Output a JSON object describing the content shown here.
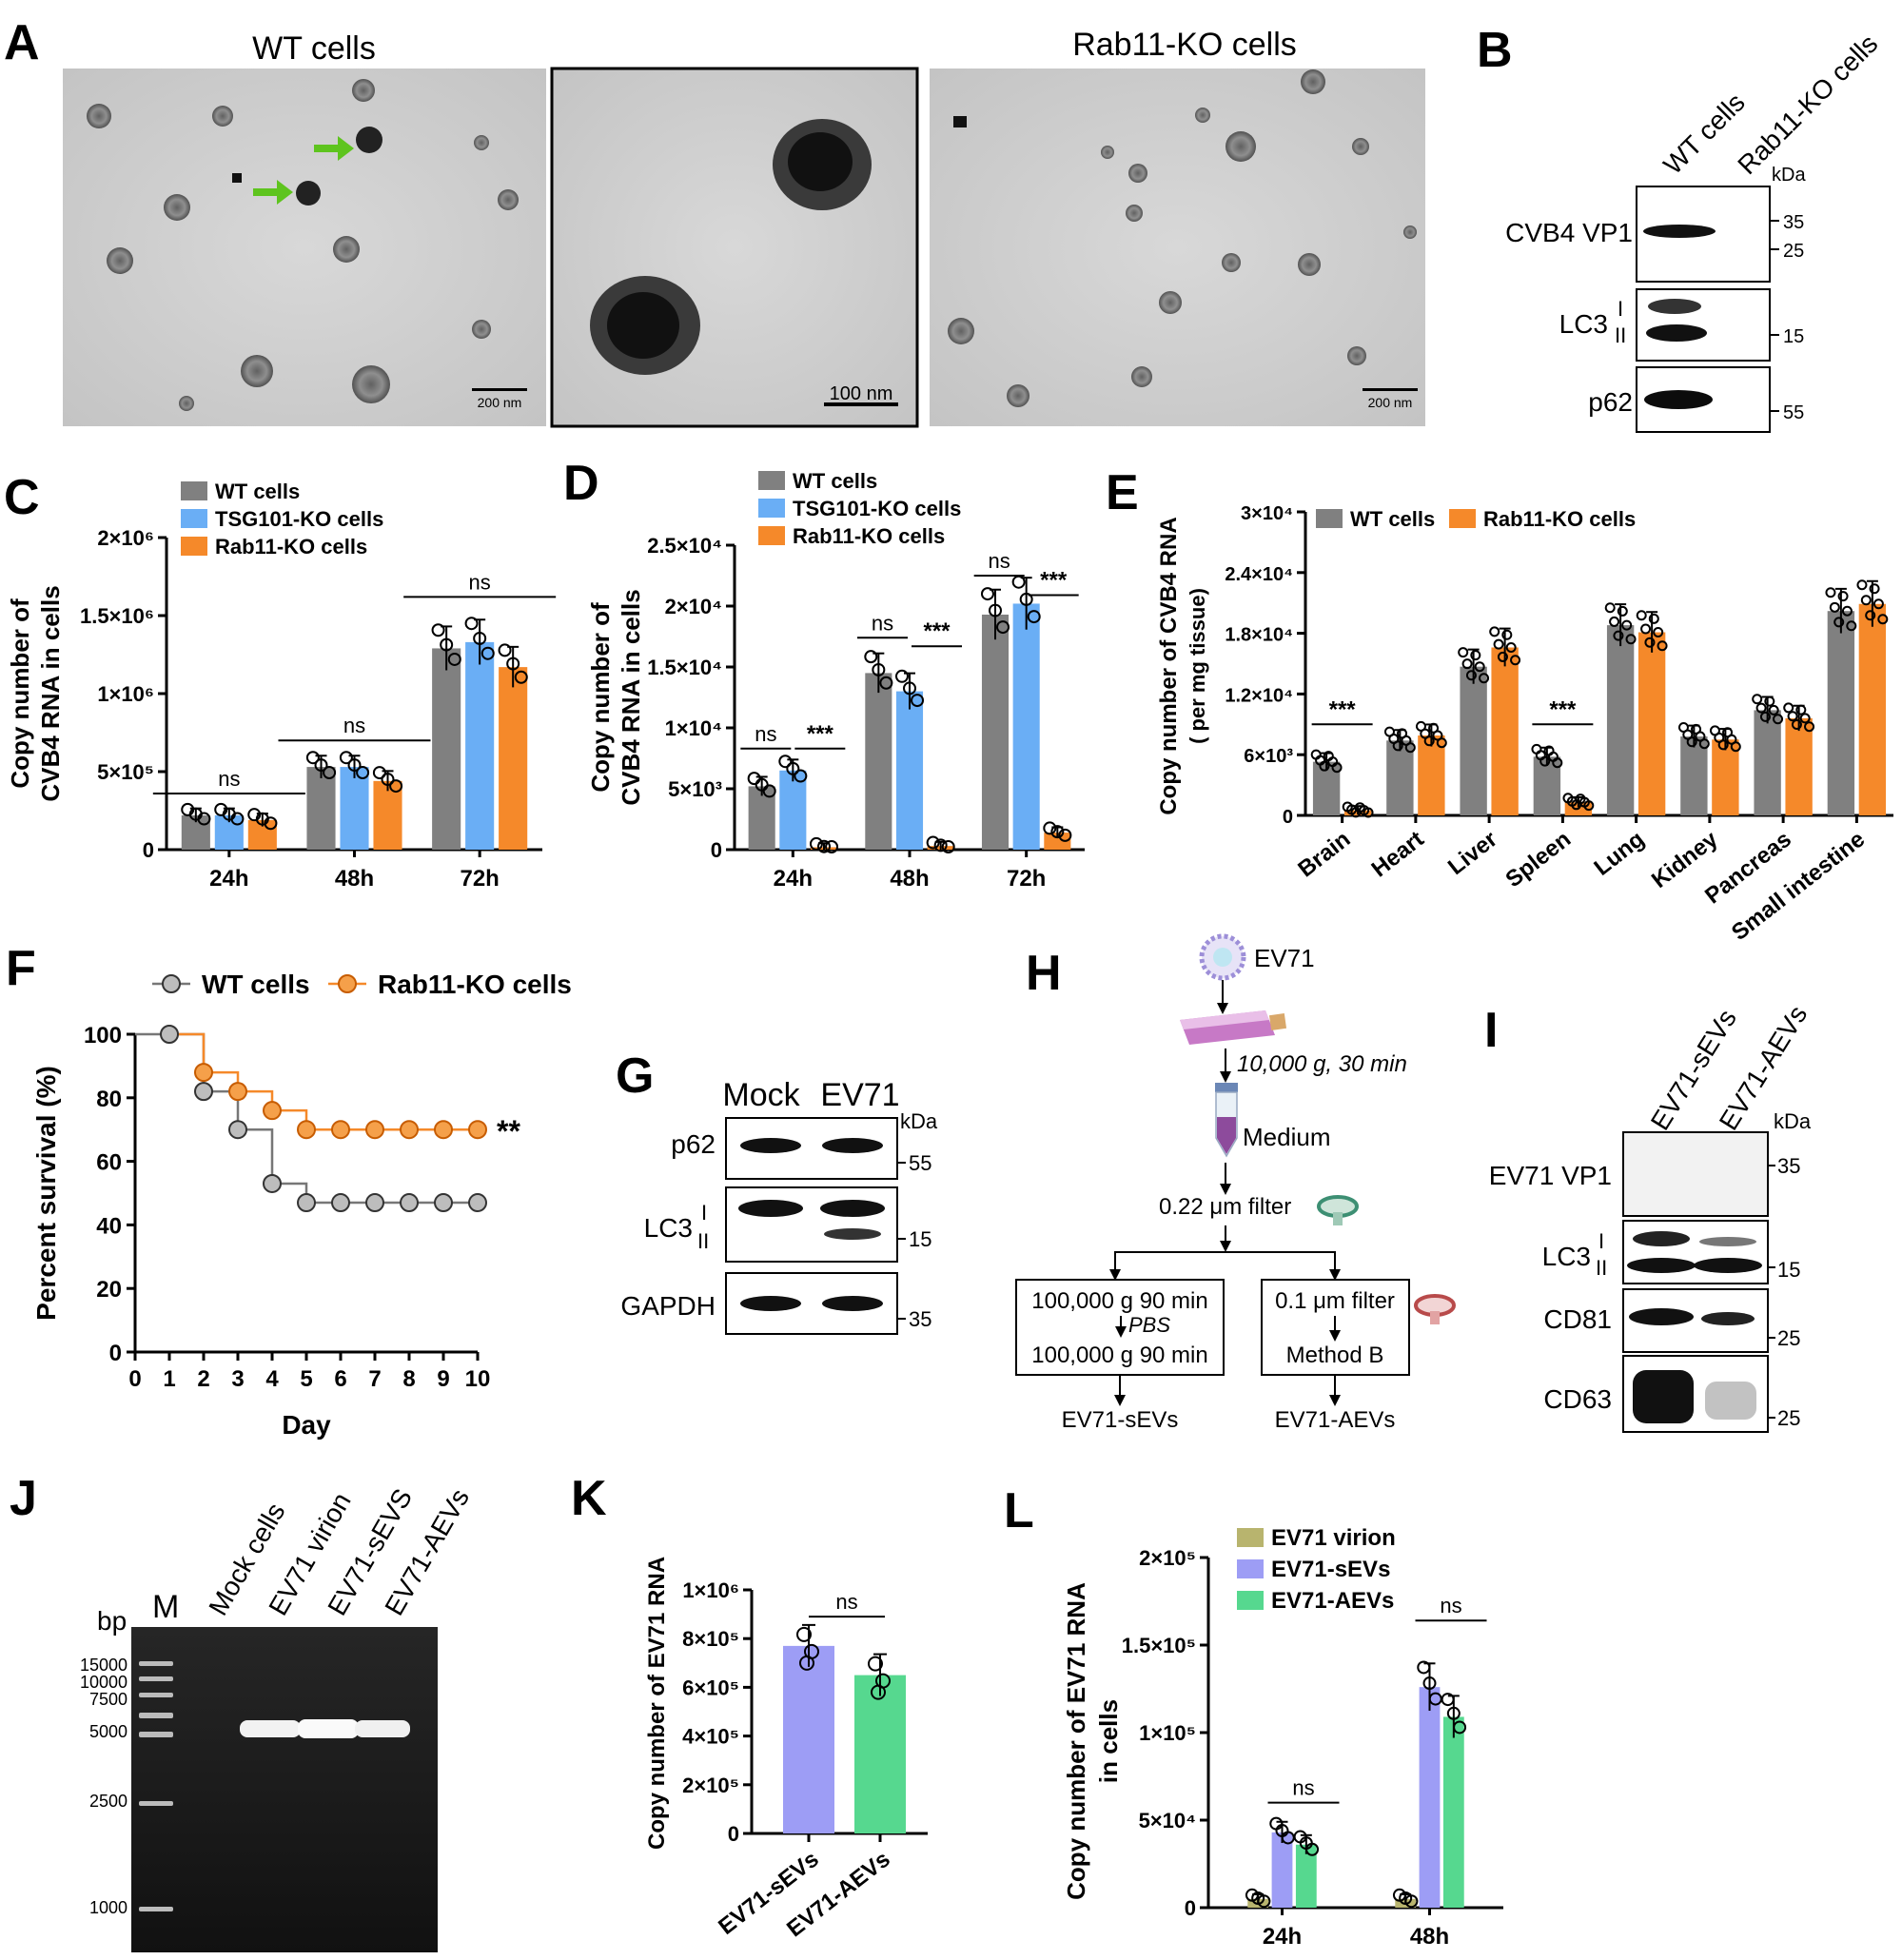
{
  "panel_letters": [
    "A",
    "B",
    "C",
    "D",
    "E",
    "F",
    "G",
    "H",
    "I",
    "J",
    "K",
    "L"
  ],
  "panelA": {
    "titles": [
      "WT cells",
      "Rab11-KO cells"
    ],
    "scalebars": [
      "200 nm",
      "100 nm",
      "200 nm"
    ]
  },
  "panelB": {
    "lanes": [
      "WT cells",
      "Rab11-KO cells"
    ],
    "kda_label": "kDa",
    "rows": [
      {
        "label": "CVB4 VP1",
        "markers": [
          "35",
          "25"
        ]
      },
      {
        "label": "LC3",
        "sub": [
          "I",
          "II"
        ],
        "markers": [
          "15"
        ]
      },
      {
        "label": "p62",
        "markers": [
          "55"
        ]
      }
    ]
  },
  "panelG": {
    "lanes": [
      "Mock",
      "EV71"
    ],
    "kda_label": "kDa",
    "rows": [
      {
        "label": "p62",
        "markers": [
          "55"
        ]
      },
      {
        "label": "LC3",
        "sub": [
          "I",
          "II"
        ],
        "markers": [
          "15"
        ]
      },
      {
        "label": "GAPDH",
        "markers": [
          "35"
        ]
      }
    ]
  },
  "panelH": {
    "virus": "EV71",
    "spin1": "10,000 g, 30 min",
    "medium": "Medium",
    "filter1": "0.22 μm filter",
    "left_box": [
      "100,000 g  90 min",
      "PBS",
      "100,000 g  90 min"
    ],
    "right_box": [
      "0.1 μm filter",
      "Method B"
    ],
    "outputs": [
      "EV71-sEVs",
      "EV71-AEVs"
    ]
  },
  "panelI": {
    "lanes": [
      "EV71-sEVs",
      "EV71-AEVs"
    ],
    "kda_label": "kDa",
    "rows": [
      {
        "label": "EV71 VP1",
        "markers": [
          "35"
        ]
      },
      {
        "label": "LC3",
        "sub": [
          "I",
          "II"
        ],
        "markers": [
          "15"
        ]
      },
      {
        "label": "CD81",
        "markers": [
          "25"
        ]
      },
      {
        "label": "CD63",
        "markers": [
          "25"
        ]
      }
    ]
  },
  "panelJ": {
    "lanes": [
      "M",
      "Mock cells",
      "EV71 virion",
      "EV71-sEVS",
      "EV71-AEVs"
    ],
    "bp_label": "bp",
    "ladder": [
      "15000",
      "10000",
      "7500",
      "5000",
      "2500",
      "1000"
    ]
  },
  "chart_data": [
    {
      "panel": "C",
      "type": "bar",
      "ylabel": "Copy number of CVB4 RNA in cells",
      "yticks": [
        "0",
        "5×10⁵",
        "1×10⁶",
        "1.5×10⁶",
        "2×10⁶"
      ],
      "ylim": [
        0,
        2000000
      ],
      "categories": [
        "24h",
        "48h",
        "72h"
      ],
      "series": [
        {
          "name": "WT cells",
          "color": "#808080",
          "values": [
            220000,
            530000,
            1290000
          ]
        },
        {
          "name": "TSG101-KO cells",
          "color": "#6aaef5",
          "values": [
            220000,
            530000,
            1330000
          ]
        },
        {
          "name": "Rab11-KO cells",
          "color": "#f5892a",
          "values": [
            190000,
            440000,
            1170000
          ]
        }
      ],
      "annotations": [
        "ns",
        "ns",
        "ns"
      ]
    },
    {
      "panel": "D",
      "type": "bar",
      "ylabel": "Copy number of CVB4 RNA in cells",
      "yticks": [
        "0",
        "5×10³",
        "1×10⁴",
        "1.5×10⁴",
        "2×10⁴",
        "2.5×10⁴"
      ],
      "ylim": [
        0,
        25000
      ],
      "categories": [
        "24h",
        "48h",
        "72h"
      ],
      "series": [
        {
          "name": "WT cells",
          "color": "#808080",
          "values": [
            5200,
            14500,
            19300
          ]
        },
        {
          "name": "TSG101-KO cells",
          "color": "#6aaef5",
          "values": [
            6500,
            13000,
            20200
          ]
        },
        {
          "name": "Rab11-KO cells",
          "color": "#f5892a",
          "values": [
            200,
            300,
            1400
          ]
        }
      ],
      "annotations": [
        "ns",
        "***",
        "ns",
        "***",
        "ns",
        "***"
      ]
    },
    {
      "panel": "E",
      "type": "bar",
      "ylabel": "Copy number of CVB4 RNA",
      "ylabel2": "( per mg tissue)",
      "yticks": [
        "0",
        "6×10³",
        "1.2×10⁴",
        "1.8×10⁴",
        "2.4×10⁴",
        "3×10⁴"
      ],
      "ylim": [
        0,
        30000
      ],
      "categories": [
        "Brain",
        "Heart",
        "Liver",
        "Spleen",
        "Lung",
        "Kidney",
        "Pancreas",
        "Small intestine"
      ],
      "series": [
        {
          "name": "WT cells",
          "color": "#808080",
          "values": [
            5300,
            7400,
            14700,
            5800,
            18800,
            7800,
            10400,
            20200
          ]
        },
        {
          "name": "Rab11-KO cells",
          "color": "#f5892a",
          "values": [
            500,
            7900,
            16600,
            1300,
            18100,
            7500,
            9600,
            20900
          ]
        }
      ],
      "annotations": [
        "***",
        "***"
      ]
    },
    {
      "panel": "F",
      "type": "line",
      "xlabel": "Day",
      "ylabel": "Percent survival (%)",
      "xticks": [
        "0",
        "1",
        "2",
        "3",
        "4",
        "5",
        "6",
        "7",
        "8",
        "9",
        "10"
      ],
      "yticks": [
        "0",
        "20",
        "40",
        "60",
        "80",
        "100"
      ],
      "xlim": [
        0,
        10
      ],
      "ylim": [
        0,
        100
      ],
      "series": [
        {
          "name": "WT cells",
          "color": "#808080",
          "x": [
            1,
            2,
            3,
            4,
            5,
            6,
            7,
            8,
            9,
            10
          ],
          "y": [
            100,
            82,
            70,
            53,
            47,
            47,
            47,
            47,
            47,
            47
          ]
        },
        {
          "name": "Rab11-KO cells",
          "color": "#f5892a",
          "x": [
            2,
            3,
            4,
            5,
            6,
            7,
            8,
            9,
            10
          ],
          "y": [
            88,
            82,
            76,
            70,
            70,
            70,
            70,
            70,
            70
          ]
        }
      ],
      "annotation": "**"
    },
    {
      "panel": "K",
      "type": "bar",
      "ylabel": "Copy number of EV71 RNA",
      "yticks": [
        "0",
        "2×10⁵",
        "4×10⁵",
        "6×10⁵",
        "8×10⁵",
        "1×10⁶"
      ],
      "ylim": [
        0,
        1000000
      ],
      "categories": [
        "EV71-sEVs",
        "EV71-AEVs"
      ],
      "values": [
        770000,
        650000
      ],
      "colors": [
        "#9d9df5",
        "#56d88f"
      ],
      "annotations": [
        "ns"
      ]
    },
    {
      "panel": "L",
      "type": "bar",
      "ylabel": "Copy number of EV71 RNA",
      "ylabel2": "in cells",
      "yticks": [
        "0",
        "5×10⁴",
        "1×10⁵",
        "1.5×10⁵",
        "2×10⁵"
      ],
      "ylim": [
        0,
        200000
      ],
      "categories": [
        "24h",
        "48h"
      ],
      "series": [
        {
          "name": "EV71 virion",
          "color": "#b8b46e",
          "values": [
            5000,
            5000
          ]
        },
        {
          "name": "EV71-sEVs",
          "color": "#9d9df5",
          "values": [
            43000,
            126000
          ]
        },
        {
          "name": "EV71-AEVs",
          "color": "#56d88f",
          "values": [
            36000,
            109000
          ]
        }
      ],
      "annotations": [
        "ns",
        "ns"
      ]
    }
  ]
}
